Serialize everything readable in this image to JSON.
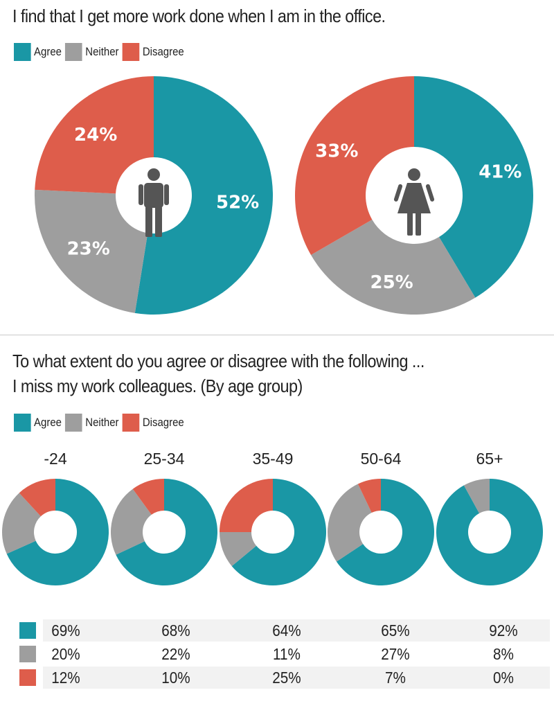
{
  "chart_data": [
    {
      "type": "pie",
      "title": "I find that I get more work done when I am in the office.",
      "legend": [
        "Agree",
        "Neither",
        "Disagree"
      ],
      "colors": {
        "Agree": "#1a97a5",
        "Neither": "#9e9e9e",
        "Disagree": "#de5d4b"
      },
      "charts": [
        {
          "icon": "man-icon",
          "values": {
            "Agree": 52,
            "Neither": 23,
            "Disagree": 24
          },
          "labels": {
            "Agree": "52%",
            "Neither": "23%",
            "Disagree": "24%"
          }
        },
        {
          "icon": "woman-icon",
          "values": {
            "Agree": 41,
            "Neither": 25,
            "Disagree": 33
          },
          "labels": {
            "Agree": "41%",
            "Neither": "25%",
            "Disagree": "33%"
          }
        }
      ]
    },
    {
      "type": "pie",
      "title_line1": "To what extent do you agree or disagree with the following ...",
      "title_line2": "I miss my work colleagues. (By age group)",
      "legend": [
        "Agree",
        "Neither",
        "Disagree"
      ],
      "colors": {
        "Agree": "#1a97a5",
        "Neither": "#9e9e9e",
        "Disagree": "#de5d4b"
      },
      "categories": [
        "-24",
        "25-34",
        "35-49",
        "50-64",
        "65+"
      ],
      "series": [
        {
          "name": "Agree",
          "values": [
            69,
            68,
            64,
            65,
            92
          ],
          "labels": [
            "69%",
            "68%",
            "64%",
            "65%",
            "92%"
          ]
        },
        {
          "name": "Neither",
          "values": [
            20,
            22,
            11,
            27,
            8
          ],
          "labels": [
            "20%",
            "22%",
            "11%",
            "27%",
            "8%"
          ]
        },
        {
          "name": "Disagree",
          "values": [
            12,
            10,
            25,
            7,
            0
          ],
          "labels": [
            "12%",
            "10%",
            "25%",
            "7%",
            "0%"
          ]
        }
      ]
    }
  ]
}
